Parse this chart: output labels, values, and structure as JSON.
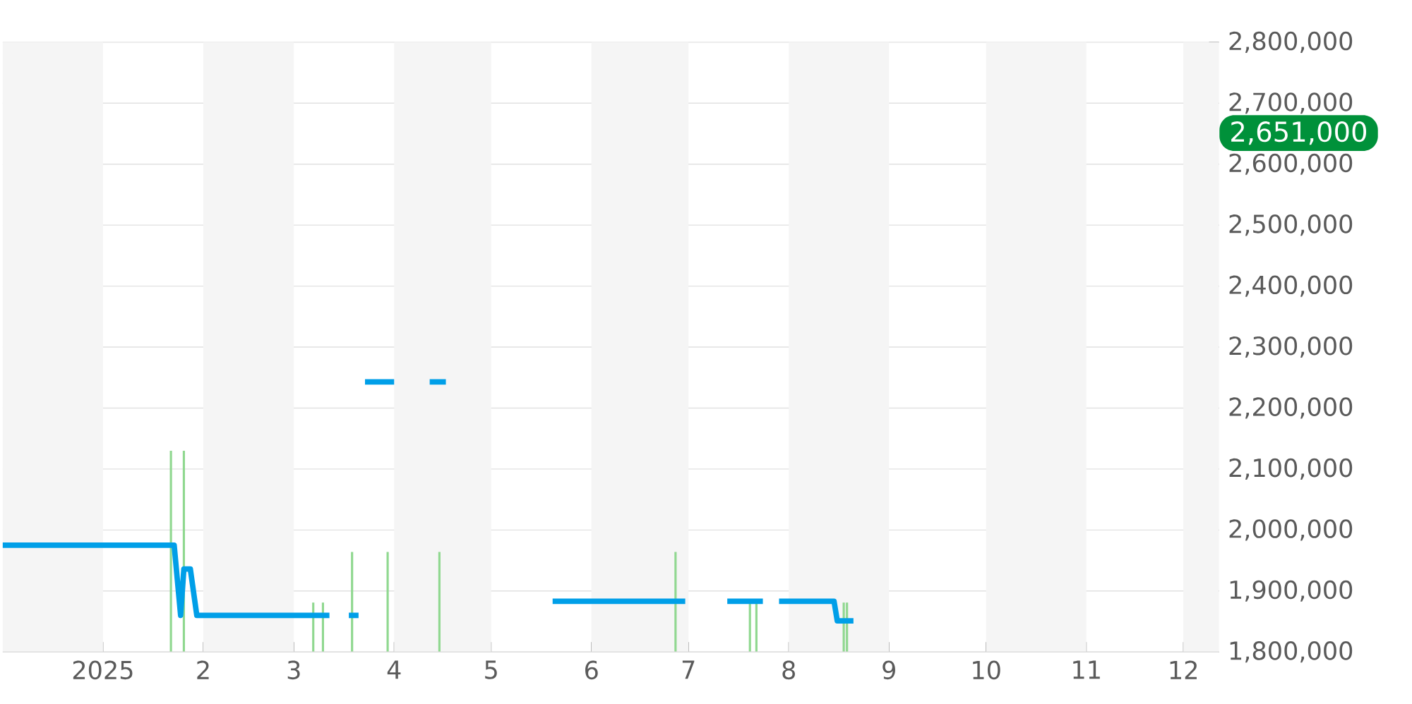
{
  "chart_data": {
    "type": "line",
    "xlim": [
      "2024-12-01",
      "2025-12-12"
    ],
    "xticks": [
      {
        "value": "2025-01-01",
        "label": "2025"
      },
      {
        "value": "2025-02-01",
        "label": "2"
      },
      {
        "value": "2025-03-01",
        "label": "3"
      },
      {
        "value": "2025-04-01",
        "label": "4"
      },
      {
        "value": "2025-05-01",
        "label": "5"
      },
      {
        "value": "2025-06-01",
        "label": "6"
      },
      {
        "value": "2025-07-01",
        "label": "7"
      },
      {
        "value": "2025-08-01",
        "label": "8"
      },
      {
        "value": "2025-09-01",
        "label": "9"
      },
      {
        "value": "2025-10-01",
        "label": "10"
      },
      {
        "value": "2025-11-01",
        "label": "11"
      },
      {
        "value": "2025-12-01",
        "label": "12"
      }
    ],
    "ylim": [
      1800000,
      2800000
    ],
    "yticks": [
      {
        "value": 1800000,
        "label": "1,800,000"
      },
      {
        "value": 1900000,
        "label": "1,900,000"
      },
      {
        "value": 2000000,
        "label": "2,000,000"
      },
      {
        "value": 2100000,
        "label": "2,100,000"
      },
      {
        "value": 2200000,
        "label": "2,200,000"
      },
      {
        "value": 2300000,
        "label": "2,300,000"
      },
      {
        "value": 2400000,
        "label": "2,400,000"
      },
      {
        "value": 2500000,
        "label": "2,500,000"
      },
      {
        "value": 2600000,
        "label": "2,600,000"
      },
      {
        "value": 2700000,
        "label": "2,700,000"
      },
      {
        "value": 2800000,
        "label": "2,800,000"
      }
    ],
    "grid": "y",
    "marker": "none",
    "line_style": "solid",
    "series": [
      {
        "type": "bar",
        "color": "#90d890",
        "x": [
          "2025-01-22",
          "2025-01-26",
          "2025-03-07",
          "2025-03-10",
          "2025-03-19",
          "2025-03-30",
          "2025-04-15",
          "2025-06-27",
          "2025-07-20",
          "2025-07-22",
          "2025-08-18",
          "2025-08-19"
        ],
        "values": [
          2130000,
          2130000,
          1881000,
          1881000,
          1964000,
          1964000,
          1964000,
          1964000,
          1885000,
          1885000,
          1881000,
          1881000
        ]
      },
      {
        "color": "#009fe8",
        "x": [
          "2024-12-01",
          "2025-01-23",
          "2025-01-25",
          "2025-01-26",
          "2025-01-28",
          "2025-01-30",
          "2025-03-12",
          "2025-03-15",
          "2025-03-18",
          "2025-03-21",
          "2025-03-22",
          "2025-03-23",
          "2025-04-01",
          "2025-04-05",
          "2025-04-12",
          "2025-04-17",
          "2025-05-01",
          "2025-05-20",
          "2025-06-30",
          "2025-07-05",
          "2025-07-13",
          "2025-07-24",
          "2025-07-26",
          "2025-07-29",
          "2025-08-15",
          "2025-08-16",
          "2025-08-21"
        ],
        "values": [
          1975000,
          1975000,
          1860000,
          1936000,
          1936000,
          1860000,
          1860000,
          null,
          1860000,
          1860000,
          null,
          2243000,
          2243000,
          null,
          2243000,
          2243000,
          null,
          1883000,
          1883000,
          null,
          1883000,
          1883000,
          null,
          1883000,
          1883000,
          1851000,
          1851000
        ]
      }
    ],
    "bands": [
      {
        "axis": "x",
        "from": "2024-12-01",
        "to": "2025-01-01",
        "color": "#f5f5f5"
      },
      {
        "axis": "x",
        "from": "2025-02-01",
        "to": "2025-03-01",
        "color": "#f5f5f5"
      },
      {
        "axis": "x",
        "from": "2025-04-01",
        "to": "2025-05-01",
        "color": "#f5f5f5"
      },
      {
        "axis": "x",
        "from": "2025-06-01",
        "to": "2025-07-01",
        "color": "#f5f5f5"
      },
      {
        "axis": "x",
        "from": "2025-08-01",
        "to": "2025-09-01",
        "color": "#f5f5f5"
      },
      {
        "axis": "x",
        "from": "2025-10-01",
        "to": "2025-11-01",
        "color": "#f5f5f5"
      },
      {
        "axis": "x",
        "from": "2025-12-01",
        "to": "2025-12-12",
        "color": "#f5f5f5"
      }
    ],
    "annotations": [
      "2,651,000"
    ]
  }
}
